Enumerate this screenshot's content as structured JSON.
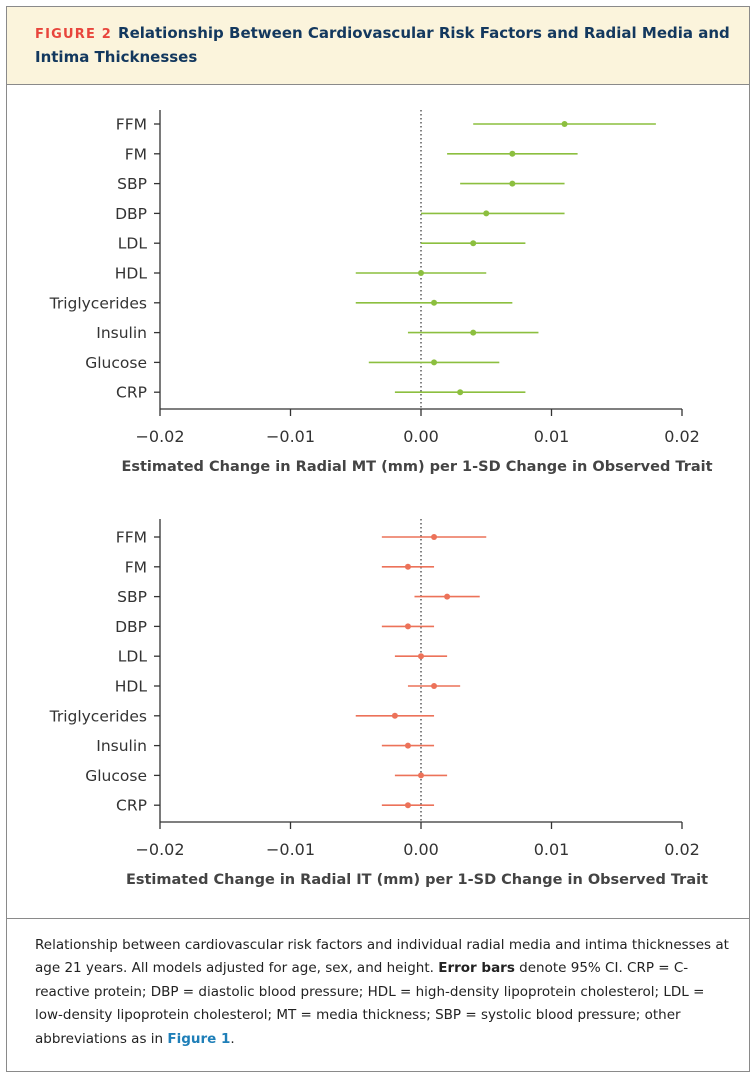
{
  "header": {
    "figure_number": "FIGURE 2",
    "title": "Relationship Between Cardiovascular Risk Factors and Radial Media and Intima Thicknesses"
  },
  "colors": {
    "top_panel": "#8cbf3f",
    "bottom_panel": "#ec7259",
    "header_bg": "#fbf4dc",
    "title": "#13385e"
  },
  "chart_data": [
    {
      "type": "scatter",
      "style": "forest-plot",
      "xlabel": "Estimated Change in Radial MT (mm) per 1-SD Change in Observed Trait",
      "xlim": [
        -0.02,
        0.02
      ],
      "xticks": [
        "-0.02",
        "-0.01",
        "0.00",
        "0.01",
        "0.02"
      ],
      "reference_line": 0,
      "categories": [
        "FFM",
        "FM",
        "SBP",
        "DBP",
        "LDL",
        "HDL",
        "Triglycerides",
        "Insulin",
        "Glucose",
        "CRP"
      ],
      "estimate": [
        0.011,
        0.007,
        0.007,
        0.005,
        0.004,
        0.0,
        0.001,
        0.004,
        0.001,
        0.003
      ],
      "ci_low": [
        0.004,
        0.002,
        0.003,
        0.0,
        0.0,
        -0.005,
        -0.005,
        -0.001,
        -0.004,
        -0.002
      ],
      "ci_high": [
        0.018,
        0.012,
        0.011,
        0.011,
        0.008,
        0.005,
        0.007,
        0.009,
        0.006,
        0.008
      ]
    },
    {
      "type": "scatter",
      "style": "forest-plot",
      "xlabel": "Estimated Change in Radial IT (mm) per 1-SD Change in Observed Trait",
      "xlim": [
        -0.02,
        0.02
      ],
      "xticks": [
        "-0.02",
        "-0.01",
        "0.00",
        "0.01",
        "0.02"
      ],
      "reference_line": 0,
      "categories": [
        "FFM",
        "FM",
        "SBP",
        "DBP",
        "LDL",
        "HDL",
        "Triglycerides",
        "Insulin",
        "Glucose",
        "CRP"
      ],
      "estimate": [
        0.001,
        -0.001,
        0.002,
        -0.001,
        0.0,
        0.001,
        -0.002,
        -0.001,
        0.0,
        -0.001
      ],
      "ci_low": [
        -0.003,
        -0.003,
        -0.0005,
        -0.003,
        -0.002,
        -0.001,
        -0.005,
        -0.003,
        -0.002,
        -0.003
      ],
      "ci_high": [
        0.005,
        0.001,
        0.0045,
        0.001,
        0.002,
        0.003,
        0.001,
        0.001,
        0.002,
        0.001
      ]
    }
  ],
  "caption": {
    "text1": "Relationship between cardiovascular risk factors and individual radial media and intima thicknesses at age 21 years. All models adjusted for age, sex, and height. ",
    "bold": "Error bars",
    "text2": " denote 95% CI. CRP = C-reactive protein; DBP = diastolic blood pressure; HDL = high-density lipoprotein cholesterol; LDL = low-density lipoprotein cholesterol; MT = media thickness; SBP = systolic blood pressure; other abbreviations as in ",
    "link": "Figure 1",
    "text3": "."
  }
}
